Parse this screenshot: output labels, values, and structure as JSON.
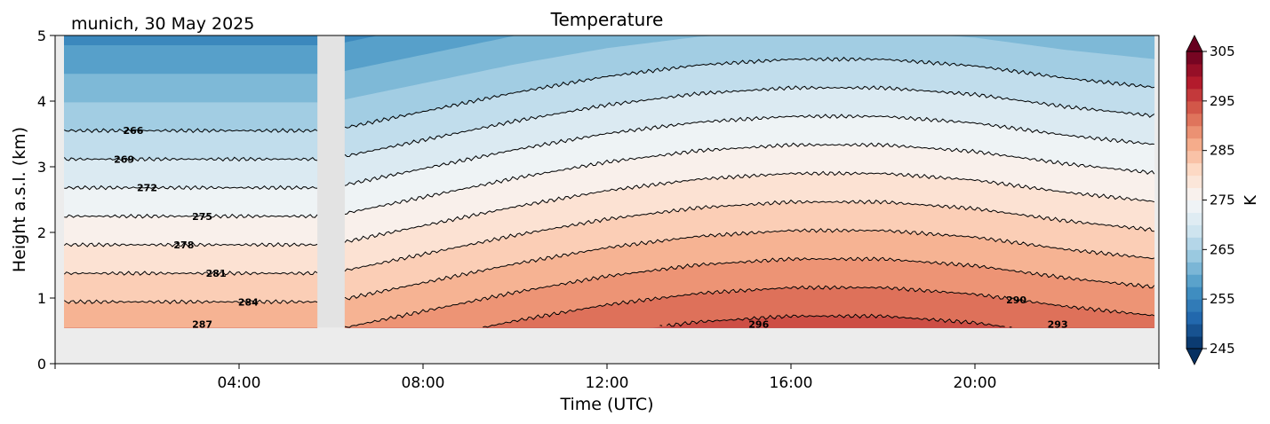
{
  "location_date": "munich, 30 May 2025",
  "chart_data": {
    "type": "heatmap",
    "title": "Temperature",
    "xlabel": "Time (UTC)",
    "ylabel": "Height a.s.l. (km)",
    "x_range_hours": [
      0,
      24
    ],
    "ylim": [
      0,
      5
    ],
    "x_ticks": [
      {
        "hour": 4,
        "label": "04:00"
      },
      {
        "hour": 8,
        "label": "08:00"
      },
      {
        "hour": 12,
        "label": "12:00"
      },
      {
        "hour": 16,
        "label": "16:00"
      },
      {
        "hour": 20,
        "label": "20:00"
      }
    ],
    "y_ticks": [
      {
        "value": 0,
        "label": "0"
      },
      {
        "value": 1,
        "label": "1"
      },
      {
        "value": 2,
        "label": "2"
      },
      {
        "value": 3,
        "label": "3"
      },
      {
        "value": 4,
        "label": "4"
      },
      {
        "value": 5,
        "label": "5"
      }
    ],
    "data_start_hour": 0.2,
    "data_end_hour": 23.9,
    "data_min_height_km": 0.55,
    "gap_hours": [
      5.7,
      6.3
    ],
    "colorbar": {
      "label": "K",
      "min": 245,
      "max": 305,
      "ticks": [
        {
          "value": 245,
          "label": "245"
        },
        {
          "value": 255,
          "label": "255"
        },
        {
          "value": 265,
          "label": "265"
        },
        {
          "value": 275,
          "label": "275"
        },
        {
          "value": 285,
          "label": "285"
        },
        {
          "value": 295,
          "label": "295"
        },
        {
          "value": 305,
          "label": "305"
        }
      ],
      "colors": [
        "#053061",
        "#2166ac",
        "#4393c3",
        "#92c5de",
        "#d1e5f0",
        "#f7f7f7",
        "#fddbc7",
        "#f4a582",
        "#d6604d",
        "#b2182b",
        "#67001f"
      ]
    },
    "temperature_model": {
      "hours": [
        0,
        6,
        8,
        10,
        12,
        14,
        16,
        18,
        20,
        22,
        24
      ],
      "surface_temp_k": [
        290.5,
        290.5,
        292.5,
        294.5,
        296.2,
        297.4,
        298.0,
        298.0,
        297.3,
        296.0,
        295.0
      ],
      "lapse_k_per_km": 6.9
    },
    "contour_levels": [
      {
        "value": 266,
        "label": "266",
        "label_hour": 1.7
      },
      {
        "value": 269,
        "label": "269",
        "label_hour": 1.5
      },
      {
        "value": 272,
        "label": "272",
        "label_hour": 2.0
      },
      {
        "value": 275,
        "label": "275",
        "label_hour": 3.2
      },
      {
        "value": 278,
        "label": "278",
        "label_hour": 2.8
      },
      {
        "value": 281,
        "label": "281",
        "label_hour": 3.5
      },
      {
        "value": 284,
        "label": "284",
        "label_hour": 4.2
      },
      {
        "value": 287,
        "label": "287",
        "label_hour": 3.2
      },
      {
        "value": 290,
        "label": "290",
        "label_hour": 20.9
      },
      {
        "value": 293,
        "label": "293",
        "label_hour": 21.8
      },
      {
        "value": 296,
        "label": "296",
        "label_hour": 15.3
      }
    ]
  }
}
